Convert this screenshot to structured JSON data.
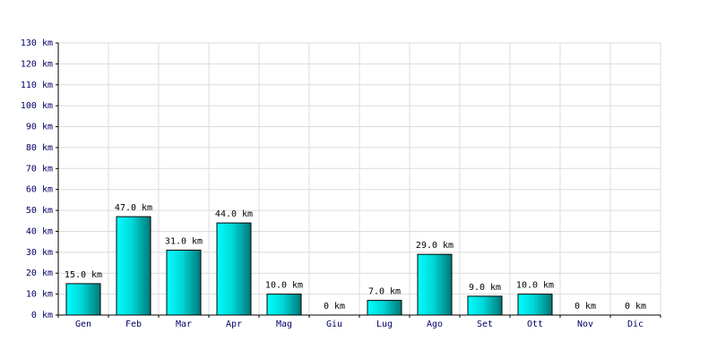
{
  "chart_data": {
    "type": "bar",
    "categories": [
      "Gen",
      "Feb",
      "Mar",
      "Apr",
      "Mag",
      "Giu",
      "Lug",
      "Ago",
      "Set",
      "Ott",
      "Nov",
      "Dic"
    ],
    "values": [
      15,
      47,
      31,
      44,
      10,
      0,
      7,
      29,
      9,
      10,
      0,
      0
    ],
    "value_labels": [
      "15.0 km",
      "47.0 km",
      "31.0 km",
      "44.0 km",
      "10.0 km",
      "0 km",
      "7.0 km",
      "29.0 km",
      "9.0 km",
      "10.0 km",
      "0 km",
      "0 km"
    ],
    "color": "#00e0e0",
    "ylim": [
      0,
      130
    ],
    "yticks": [
      {
        "value": 0,
        "label": "0 km"
      },
      {
        "value": 10,
        "label": "10 km"
      },
      {
        "value": 20,
        "label": "20 km"
      },
      {
        "value": 30,
        "label": "30 km"
      },
      {
        "value": 40,
        "label": "40 km"
      },
      {
        "value": 50,
        "label": "50 km"
      },
      {
        "value": 60,
        "label": "60 km"
      },
      {
        "value": 70,
        "label": "70 km"
      },
      {
        "value": 80,
        "label": "80 km"
      },
      {
        "value": 90,
        "label": "90 km"
      },
      {
        "value": 100,
        "label": "100 km"
      },
      {
        "value": 110,
        "label": "110 km"
      },
      {
        "value": 120,
        "label": "120 km"
      },
      {
        "value": 130,
        "label": "130 km"
      }
    ],
    "grid": true
  }
}
